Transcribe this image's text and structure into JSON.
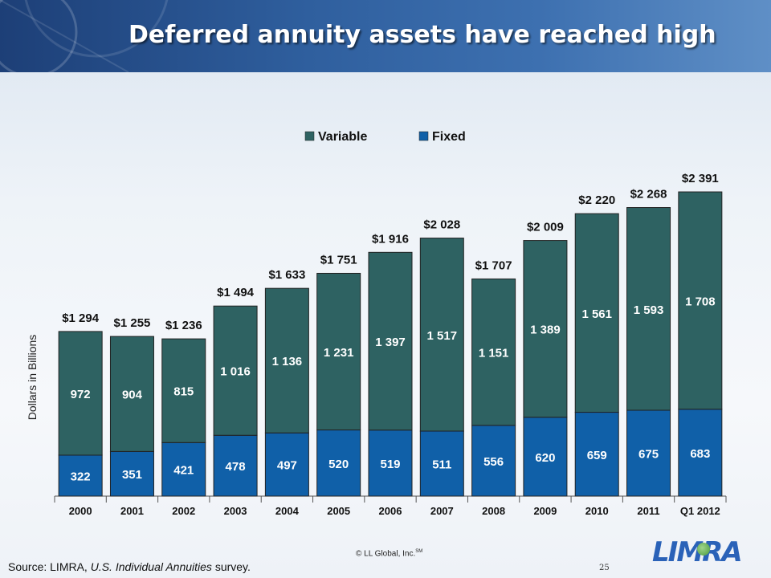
{
  "slide": {
    "title": "Deferred annuity assets  have reached high",
    "source_prefix": "Source: LIMRA, ",
    "source_italic": "U.S. Individual Annuities",
    "source_suffix": " survey.",
    "copyright": "© LL Global, Inc.",
    "copyright_mark": "SM",
    "page_number": "25",
    "logo_text": "LIMRA"
  },
  "colors": {
    "variable": "#2e6262",
    "fixed": "#1060a8",
    "banner": "#2f5f9e"
  },
  "chart_data": {
    "type": "bar",
    "stacked": true,
    "ylabel": "Dollars in Billions",
    "xlabel": "",
    "legend_position": "top-center",
    "grid": false,
    "categories": [
      "2000",
      "2001",
      "2002",
      "2003",
      "2004",
      "2005",
      "2006",
      "2007",
      "2008",
      "2009",
      "2010",
      "2011",
      "Q1 2012"
    ],
    "series": [
      {
        "name": "Fixed",
        "values": [
          322,
          351,
          421,
          478,
          497,
          520,
          519,
          511,
          556,
          620,
          659,
          675,
          683
        ],
        "labels": [
          "322",
          "351",
          "421",
          "478",
          "497",
          "520",
          "519",
          "511",
          "556",
          "620",
          "659",
          "675",
          "683"
        ]
      },
      {
        "name": "Variable",
        "values": [
          972,
          904,
          815,
          1016,
          1136,
          1231,
          1397,
          1517,
          1151,
          1389,
          1561,
          1593,
          1708
        ],
        "labels": [
          "972",
          "904",
          "815",
          "1 016",
          "1 136",
          "1 231",
          "1 397",
          "1 517",
          "1 151",
          "1 389",
          "1 561",
          "1 593",
          "1 708"
        ]
      }
    ],
    "totals": [
      "$1 294",
      "$1 255",
      "$1 236",
      "$1 494",
      "$1 633",
      "$1 751",
      "$1 916",
      "$2 028",
      "$1 707",
      "$2 009",
      "$2 220",
      "$2 268",
      "$2 391"
    ],
    "total_values": [
      1294,
      1255,
      1236,
      1494,
      1633,
      1751,
      1916,
      2028,
      1707,
      2009,
      2220,
      2268,
      2391
    ],
    "legend": [
      "Variable",
      "Fixed"
    ]
  }
}
